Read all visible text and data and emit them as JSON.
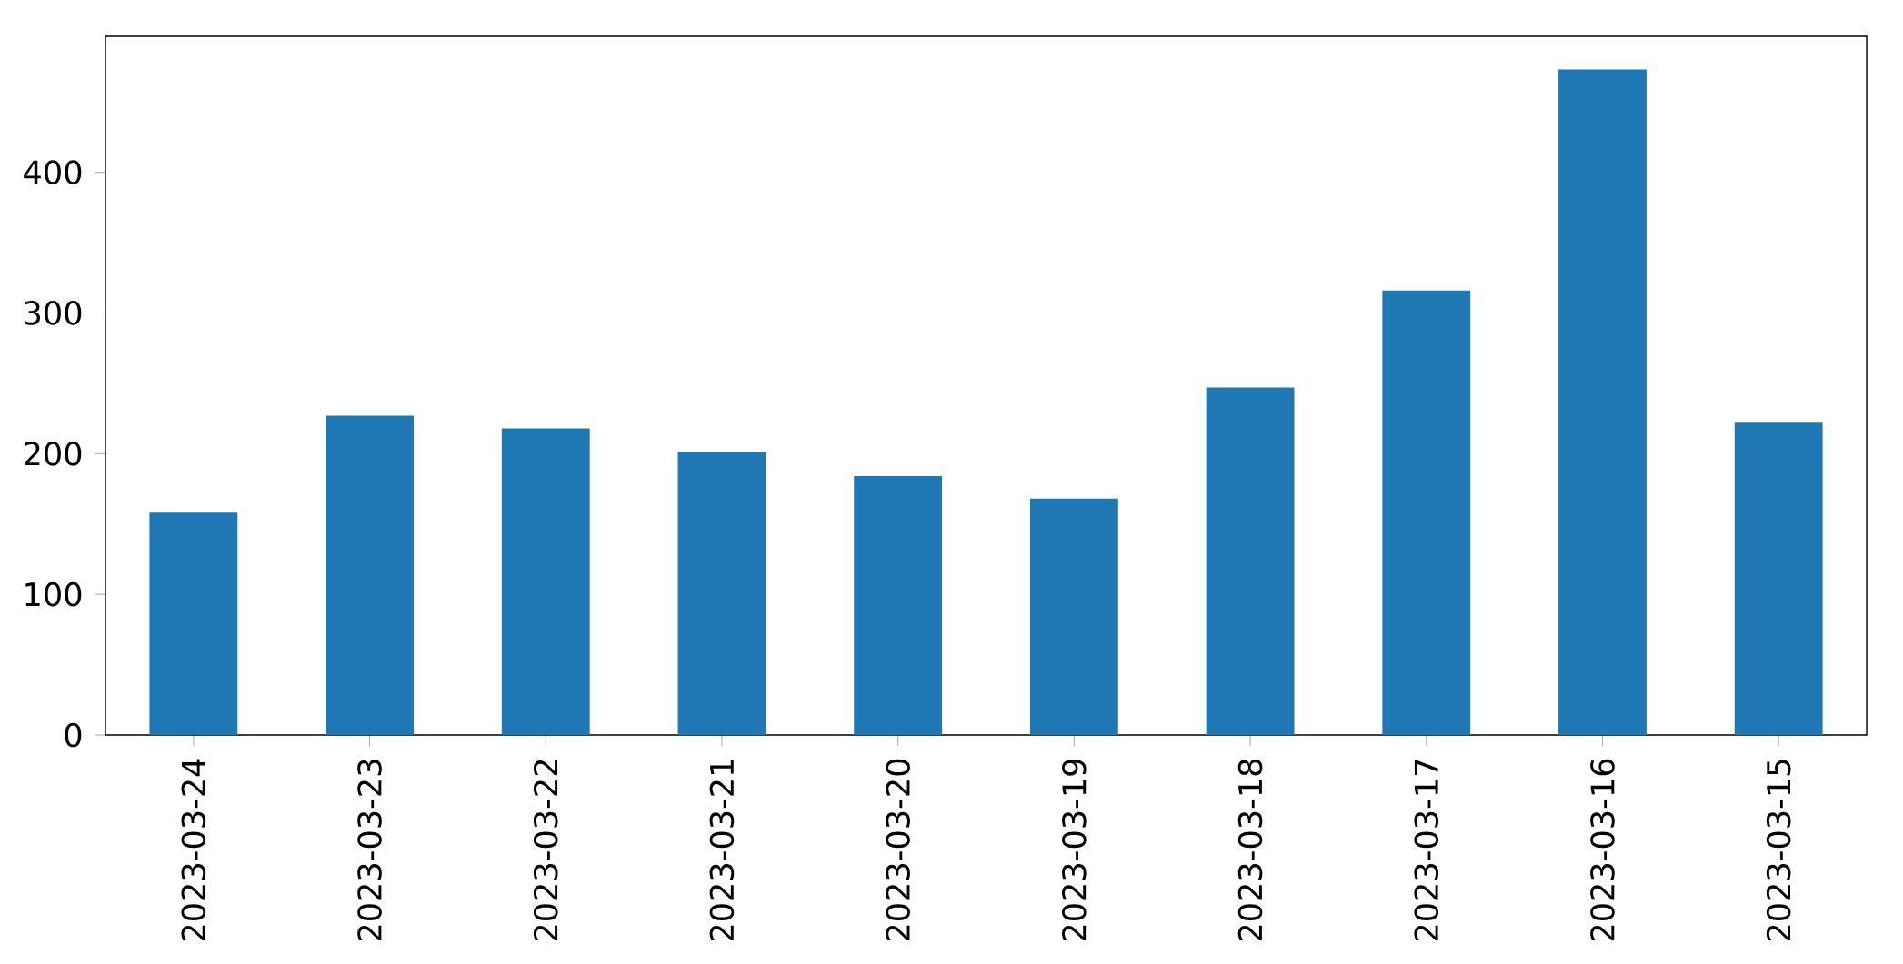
{
  "chart_data": {
    "type": "bar",
    "categories": [
      "2023-03-24",
      "2023-03-23",
      "2023-03-22",
      "2023-03-21",
      "2023-03-20",
      "2023-03-19",
      "2023-03-18",
      "2023-03-17",
      "2023-03-16",
      "2023-03-15"
    ],
    "values": [
      158,
      227,
      218,
      201,
      184,
      168,
      247,
      316,
      473,
      222
    ],
    "color": "#1f77b4",
    "ylim": [
      0,
      496.6
    ],
    "yticks": [
      0,
      100,
      200,
      300,
      400
    ]
  }
}
